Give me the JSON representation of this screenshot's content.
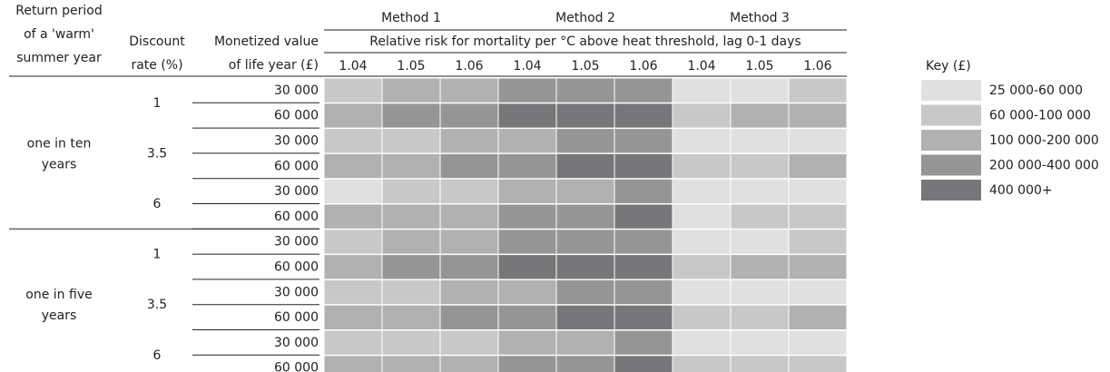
{
  "header": {
    "period": [
      "Return period",
      "of a 'warm'",
      "summer year"
    ],
    "rate": [
      "Discount",
      "rate (%)"
    ],
    "value": [
      "Monetized value",
      "of life year (£)"
    ],
    "subtitle": "Relative risk for mortality per °C above heat threshold, lag 0-1 days",
    "methods": [
      {
        "name": "Method 1",
        "risks": [
          "1.04",
          "1.05",
          "1.06"
        ]
      },
      {
        "name": "Method 2",
        "risks": [
          "1.04",
          "1.05",
          "1.06"
        ]
      },
      {
        "name": "Method 3",
        "risks": [
          "1.04",
          "1.05",
          "1.06"
        ]
      }
    ]
  },
  "groups": [
    {
      "period": [
        "one in ten",
        "years"
      ],
      "rates": [
        {
          "rate": "1",
          "values": [
            {
              "value": "30 000",
              "cells": [
                1,
                2,
                2,
                3,
                3,
                3,
                0,
                0,
                1
              ]
            },
            {
              "value": "60 000",
              "cells": [
                2,
                3,
                3,
                4,
                4,
                4,
                1,
                2,
                2
              ]
            }
          ]
        },
        {
          "rate": "3.5",
          "values": [
            {
              "value": "30 000",
              "cells": [
                1,
                1,
                2,
                2,
                3,
                3,
                0,
                0,
                0
              ]
            },
            {
              "value": "60 000",
              "cells": [
                2,
                2,
                3,
                3,
                4,
                4,
                1,
                1,
                2
              ]
            }
          ]
        },
        {
          "rate": "6",
          "values": [
            {
              "value": "30 000",
              "cells": [
                0,
                1,
                1,
                2,
                2,
                3,
                0,
                0,
                0
              ]
            },
            {
              "value": "60 000",
              "cells": [
                2,
                2,
                2,
                3,
                3,
                4,
                0,
                1,
                1
              ]
            }
          ]
        }
      ]
    },
    {
      "period": [
        "one in five",
        "years"
      ],
      "rates": [
        {
          "rate": "1",
          "values": [
            {
              "value": "30 000",
              "cells": [
                1,
                2,
                2,
                3,
                3,
                3,
                0,
                0,
                1
              ]
            },
            {
              "value": "60 000",
              "cells": [
                2,
                3,
                3,
                4,
                4,
                4,
                1,
                2,
                2
              ]
            }
          ]
        },
        {
          "rate": "3.5",
          "values": [
            {
              "value": "30 000",
              "cells": [
                1,
                1,
                2,
                2,
                3,
                3,
                0,
                0,
                0
              ]
            },
            {
              "value": "60 000",
              "cells": [
                2,
                2,
                3,
                3,
                4,
                4,
                1,
                1,
                2
              ]
            }
          ]
        },
        {
          "rate": "6",
          "values": [
            {
              "value": "30 000",
              "cells": [
                1,
                1,
                1,
                2,
                2,
                3,
                0,
                0,
                0
              ]
            },
            {
              "value": "60 000",
              "cells": [
                2,
                2,
                2,
                3,
                3,
                4,
                1,
                1,
                1
              ]
            }
          ]
        }
      ]
    }
  ],
  "key": {
    "title": "Key (£)",
    "levels": [
      {
        "label": "25 000-60 000",
        "color": "#e0e0e0"
      },
      {
        "label": "60 000-100 000",
        "color": "#c8c8c8"
      },
      {
        "label": "100 000-200 000",
        "color": "#b1b1b1"
      },
      {
        "label": "200 000-400 000",
        "color": "#959595"
      },
      {
        "label": "400 000+",
        "color": "#77777a"
      }
    ]
  }
}
